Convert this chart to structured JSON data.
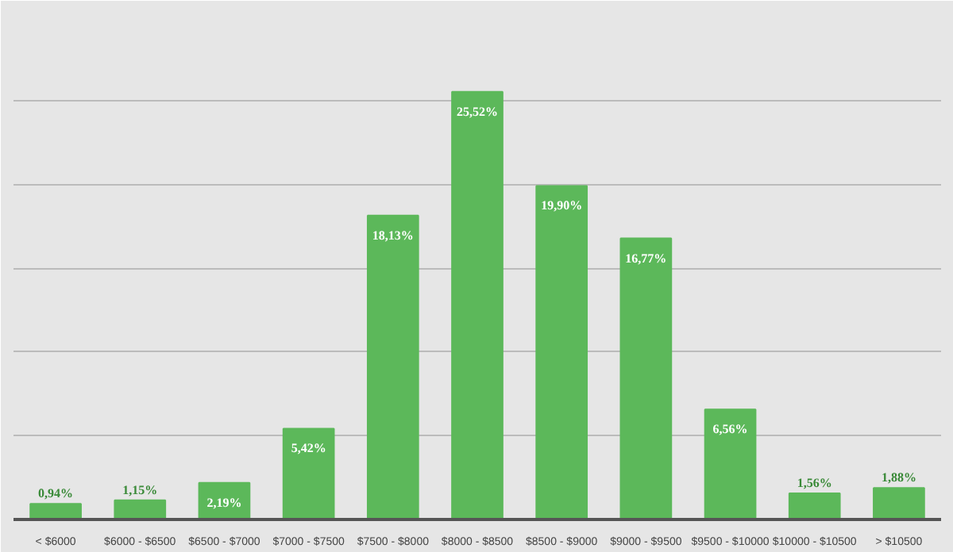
{
  "chart_data": {
    "type": "bar",
    "categories": [
      "< $6000",
      "$6000 - $6500",
      "$6500 - $7000",
      "$7000 - $7500",
      "$7500 - $8000",
      "$8000 - $8500",
      "$8500 - $9000",
      "$9000 - $9500",
      "$9500 - $10000",
      "$10000 - $10500",
      "> $10500"
    ],
    "values": [
      0.94,
      1.15,
      2.19,
      5.42,
      18.13,
      25.52,
      19.9,
      16.77,
      6.56,
      1.56,
      1.88
    ],
    "value_labels": [
      "0,94%",
      "1,15%",
      "2,19%",
      "5,42%",
      "18,13%",
      "25,52%",
      "19,90%",
      "16,77%",
      "6,56%",
      "1,56%",
      "1,88%"
    ],
    "color": "#5cb85a",
    "ylim": [
      0,
      30
    ],
    "yticks": [
      {
        "value": 0,
        "label": null
      },
      {
        "value": 5,
        "label": null
      },
      {
        "value": 10,
        "label": null
      },
      {
        "value": 15,
        "label": null
      },
      {
        "value": 20,
        "label": null
      },
      {
        "value": 25,
        "label": null
      }
    ],
    "tick_labels": "x",
    "grid": "y"
  }
}
